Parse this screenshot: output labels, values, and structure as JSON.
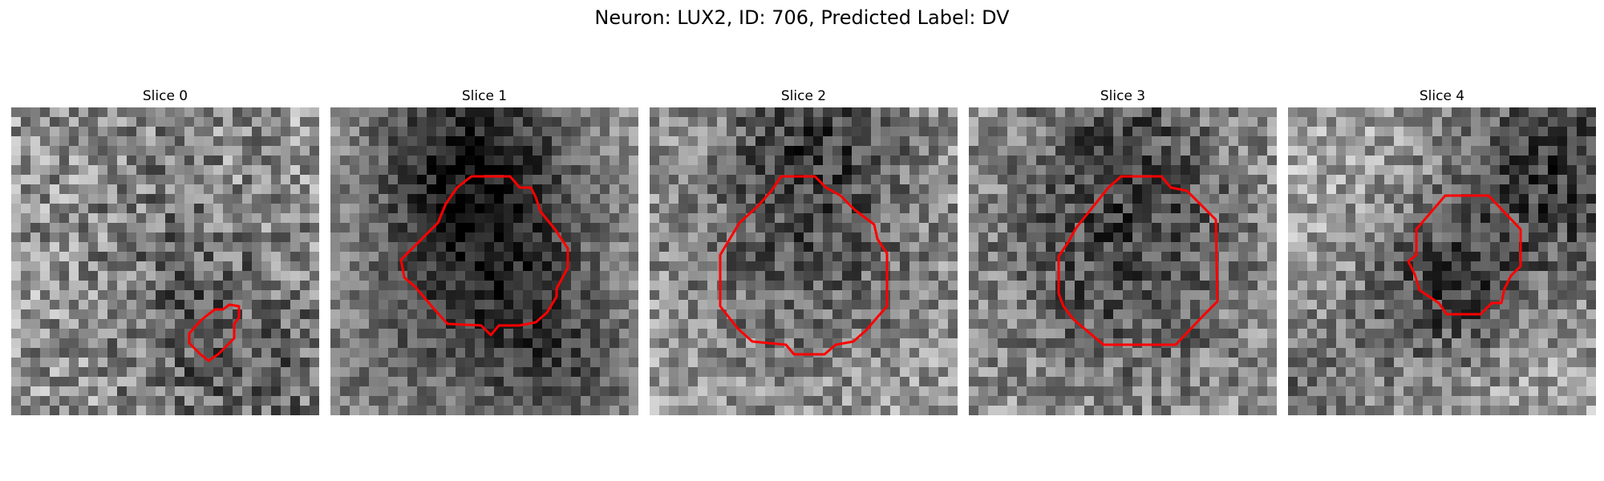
{
  "figure": {
    "title": "Neuron: LUX2, ID: 706, Predicted Label: DV",
    "contour_color": "#ff0000"
  },
  "panels": [
    {
      "title": "Slice 0"
    },
    {
      "title": "Slice 1"
    },
    {
      "title": "Slice 2"
    },
    {
      "title": "Slice 3"
    },
    {
      "title": "Slice 4"
    }
  ]
}
